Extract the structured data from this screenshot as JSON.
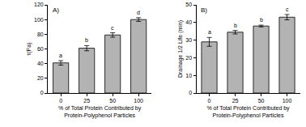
{
  "chart_data": [
    {
      "type": "bar",
      "title": "A)",
      "categories": [
        "0",
        "25",
        "50",
        "100"
      ],
      "values": [
        41,
        61,
        79,
        100
      ],
      "errors": [
        3,
        3.5,
        3,
        2.5
      ],
      "annotations": [
        "a",
        "b",
        "c",
        "d"
      ],
      "color": "#b3b3b3",
      "xlabel": [
        "% of Total Protein Contributed by",
        "Protein-Polyphenol Particles"
      ],
      "ylabel": "τ(Pa)",
      "ylim": [
        0,
        120
      ],
      "yticks": [
        0,
        20,
        40,
        60,
        80,
        100,
        120
      ],
      "grid": false
    },
    {
      "type": "bar",
      "title": "B)",
      "categories": [
        "0",
        "25",
        "50",
        "100"
      ],
      "values": [
        29,
        34.5,
        38,
        43
      ],
      "errors": [
        2.5,
        1,
        0.5,
        1.5
      ],
      "annotations": [
        "a",
        "b",
        "b",
        "c"
      ],
      "color": "#b3b3b3",
      "xlabel": [
        "% of Total Protein Contributed by",
        "Protein-Polyphenol Particles"
      ],
      "ylabel": "Drainage 1/2 Life (min)",
      "ylim": [
        0,
        50
      ],
      "yticks": [
        0,
        10,
        20,
        30,
        40,
        50
      ],
      "grid": false
    }
  ]
}
